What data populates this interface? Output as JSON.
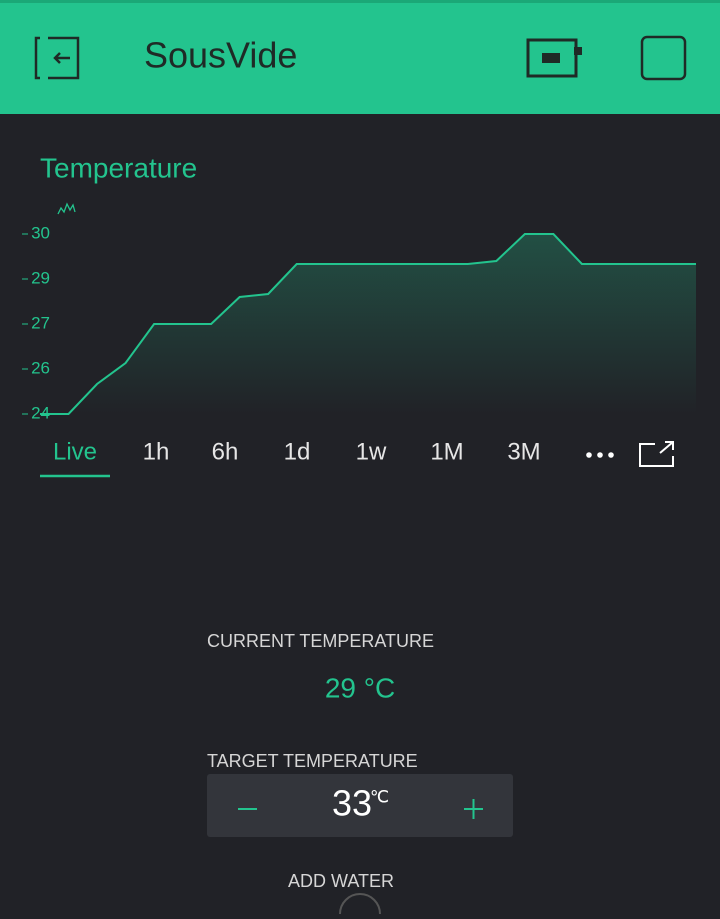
{
  "header": {
    "title": "SousVide"
  },
  "chart_data": {
    "type": "line",
    "title": "Temperature",
    "series": [
      {
        "name": "Temperature",
        "color": "#23c48e",
        "values": [
          24,
          24,
          25,
          25.7,
          27,
          27,
          27,
          27.9,
          28,
          29,
          29,
          29,
          29,
          29,
          29,
          29,
          29.1,
          30,
          30,
          29,
          29,
          29,
          29,
          29
        ]
      }
    ],
    "ylim": [
      24,
      30
    ],
    "yticks": [
      24,
      {
        "value": 25.5,
        "label": "26"
      },
      27,
      {
        "value": 28.5,
        "label": "29"
      },
      30
    ],
    "ranges": [
      "Live",
      "1h",
      "6h",
      "1d",
      "1w",
      "1M",
      "3M"
    ]
  },
  "current": {
    "label": "CURRENT TEMPERATURE",
    "value": "29 °C"
  },
  "target": {
    "label": "TARGET TEMPERATURE",
    "value": "33",
    "unit": "℃"
  },
  "add_water": {
    "label": "ADD WATER"
  }
}
